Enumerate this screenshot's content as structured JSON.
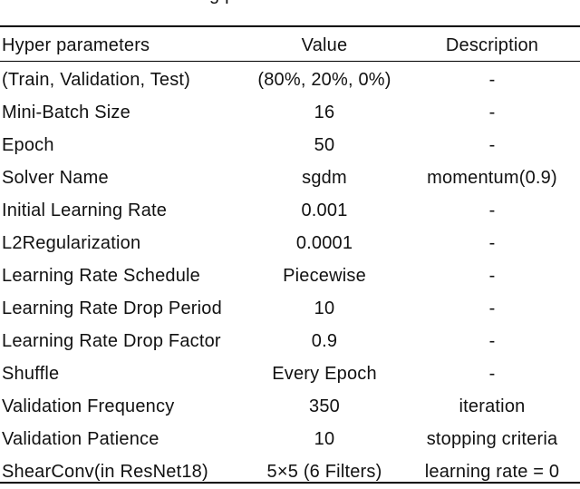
{
  "caption_fragment": "g p",
  "table": {
    "columns": [
      "Hyper parameters",
      "Value",
      "Description"
    ],
    "rows": [
      [
        "(Train, Validation, Test)",
        "(80%, 20%, 0%)",
        "-"
      ],
      [
        "Mini-Batch Size",
        "16",
        "-"
      ],
      [
        "Epoch",
        "50",
        "-"
      ],
      [
        "Solver Name",
        "sgdm",
        "momentum(0.9)"
      ],
      [
        "Initial Learning Rate",
        "0.001",
        "-"
      ],
      [
        "L2Regularization",
        "0.0001",
        "-"
      ],
      [
        "Learning Rate Schedule",
        "Piecewise",
        "-"
      ],
      [
        "Learning Rate Drop Period",
        "10",
        "-"
      ],
      [
        "Learning Rate Drop Factor",
        "0.9",
        "-"
      ],
      [
        "Shuffle",
        "Every Epoch",
        "-"
      ],
      [
        "Validation Frequency",
        "350",
        "iteration"
      ],
      [
        "Validation Patience",
        "10",
        "stopping criteria"
      ],
      [
        "ShearConv(in ResNet18)",
        "5×5 (6 Filters)",
        "learning rate = 0"
      ]
    ]
  },
  "colors": {
    "background": "#ffffff",
    "text": "#111111",
    "rule": "#000000"
  }
}
